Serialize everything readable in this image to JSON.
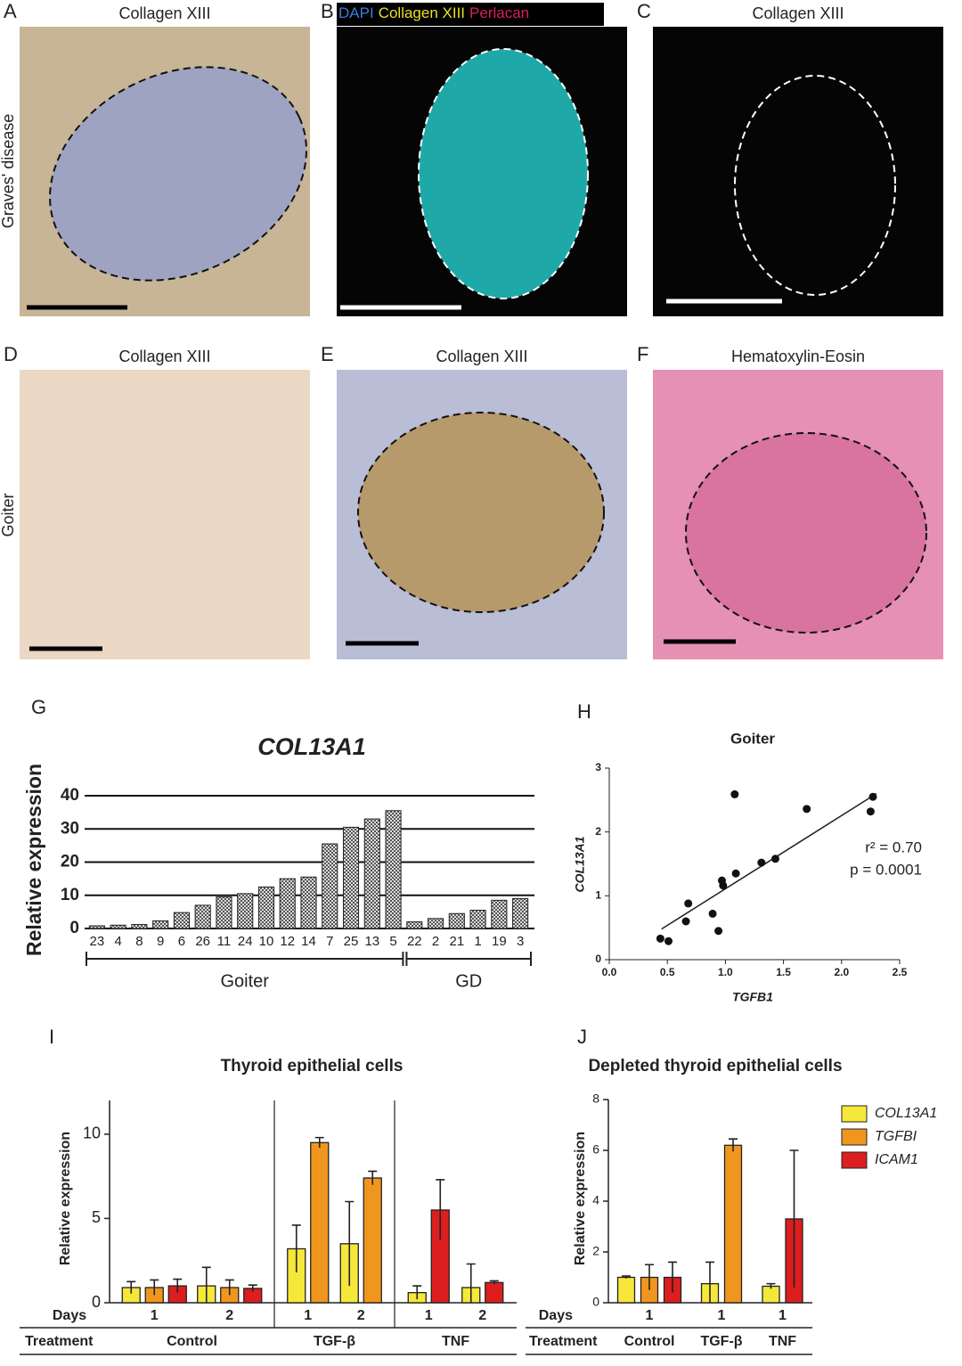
{
  "panels": [
    {
      "letter": "A",
      "title": "Collagen XIII"
    },
    {
      "letter": "B",
      "title": [
        "DAPI",
        "Collagen XIII",
        "Perlacan"
      ]
    },
    {
      "letter": "C",
      "title": "Collagen XIII"
    },
    {
      "letter": "D",
      "title": "Collagen XIII"
    },
    {
      "letter": "E",
      "title": "Collagen XIII"
    },
    {
      "letter": "F",
      "title": "Hematoxylin-Eosin"
    }
  ],
  "row_labels": [
    "Graves' disease",
    "Goiter"
  ],
  "chart_data": [
    {
      "type": "bar",
      "letter": "G",
      "title": "COL13A1",
      "ylabel": "Relative expression",
      "categories": [
        "23",
        "4",
        "8",
        "9",
        "6",
        "26",
        "11",
        "24",
        "10",
        "12",
        "14",
        "7",
        "25",
        "13",
        "5",
        "22",
        "2",
        "21",
        "1",
        "19",
        "3"
      ],
      "values": [
        0.8,
        1,
        1.2,
        2.3,
        4.8,
        7,
        9.5,
        10.5,
        12.5,
        15,
        15.5,
        25.5,
        30.5,
        33,
        35.5,
        2,
        3,
        4.5,
        5.5,
        8.5,
        9
      ],
      "color": "#9a9a9a",
      "ylim": [
        0,
        40
      ],
      "yticks": [
        0,
        10,
        20,
        30,
        40
      ],
      "grid": true,
      "groups": [
        {
          "label": "Goiter",
          "first": "23",
          "last": "5"
        },
        {
          "label": "GD",
          "first": "22",
          "last": "3"
        }
      ]
    },
    {
      "type": "scatter",
      "letter": "H",
      "title": "Goiter",
      "xlabel": "TGFB1",
      "ylabel": "COL13A1",
      "x": [
        0.44,
        0.51,
        0.68,
        0.66,
        0.89,
        0.94,
        0.97,
        0.98,
        1.09,
        1.08,
        1.31,
        1.43,
        1.7,
        2.25,
        2.27
      ],
      "y": [
        0.33,
        0.29,
        0.88,
        0.6,
        0.72,
        0.45,
        1.24,
        1.16,
        1.35,
        2.59,
        1.52,
        1.58,
        2.36,
        2.32,
        2.55
      ],
      "color": "#111111",
      "fit": {
        "x": [
          0.45,
          2.3
        ],
        "y": [
          0.48,
          2.6
        ]
      },
      "xlim": [
        0,
        2.5
      ],
      "xticks": [
        {
          "value": 0,
          "label": "0.0"
        },
        0.5,
        {
          "value": 1,
          "label": "1.0"
        },
        1.5,
        {
          "value": 2,
          "label": "2.0"
        },
        2.5
      ],
      "ylim": [
        0,
        3
      ],
      "yticks": [
        0,
        1,
        2,
        3
      ],
      "annotations": [
        "r² = 0.70",
        "p  = 0.0001"
      ]
    },
    {
      "type": "errorbar",
      "letter": "I",
      "title": "Thyroid epithelial cells",
      "ylabel": "Relative expression",
      "row_labels": [
        "Days",
        "Treatment"
      ],
      "categories": [
        "1",
        "2",
        "1",
        "2",
        "1",
        "2"
      ],
      "treatments": [
        "Control",
        "TGF-β",
        "TNF"
      ],
      "ylim": [
        0,
        12
      ],
      "yticks": [
        0,
        5,
        10
      ],
      "series": [
        {
          "name": "COL13A1",
          "color": "#f5e83a",
          "values": [
            0.9,
            1.0,
            3.2,
            3.5,
            0.6,
            0.9
          ],
          "errors": [
            0.35,
            1.1,
            1.4,
            2.5,
            0.4,
            1.4
          ]
        },
        {
          "name": "TGFBI",
          "color": "#f0961e",
          "values": [
            0.9,
            0.9,
            9.5,
            7.4,
            null,
            null
          ],
          "errors": [
            0.45,
            0.45,
            0.3,
            0.4,
            null,
            null
          ]
        },
        {
          "name": "ICAM1",
          "color": "#dc1e1e",
          "values": [
            1.0,
            0.85,
            null,
            null,
            5.5,
            1.2
          ],
          "errors": [
            0.4,
            0.2,
            null,
            null,
            1.8,
            0.1
          ]
        }
      ]
    },
    {
      "type": "errorbar",
      "letter": "J",
      "title": "Depleted thyroid epithelial cells",
      "ylabel": "Relative expression",
      "row_labels": [
        "Days",
        "Treatment"
      ],
      "categories": [
        "1",
        "1",
        "1"
      ],
      "treatments": [
        "Control",
        "TGF-β",
        "TNF"
      ],
      "ylim": [
        0,
        8
      ],
      "yticks": [
        0,
        2,
        4,
        6,
        8
      ],
      "legend": "right",
      "series": [
        {
          "name": "COL13A1",
          "color": "#f5e83a",
          "values": [
            1.0,
            0.75,
            0.65
          ],
          "errors": [
            0.05,
            0.85,
            0.1
          ]
        },
        {
          "name": "TGFBI",
          "color": "#f0961e",
          "values": [
            1.0,
            6.2,
            null
          ],
          "errors": [
            0.5,
            0.25,
            null
          ]
        },
        {
          "name": "ICAM1",
          "color": "#dc1e1e",
          "values": [
            1.0,
            null,
            3.3
          ],
          "errors": [
            0.6,
            null,
            2.7
          ]
        }
      ]
    }
  ]
}
